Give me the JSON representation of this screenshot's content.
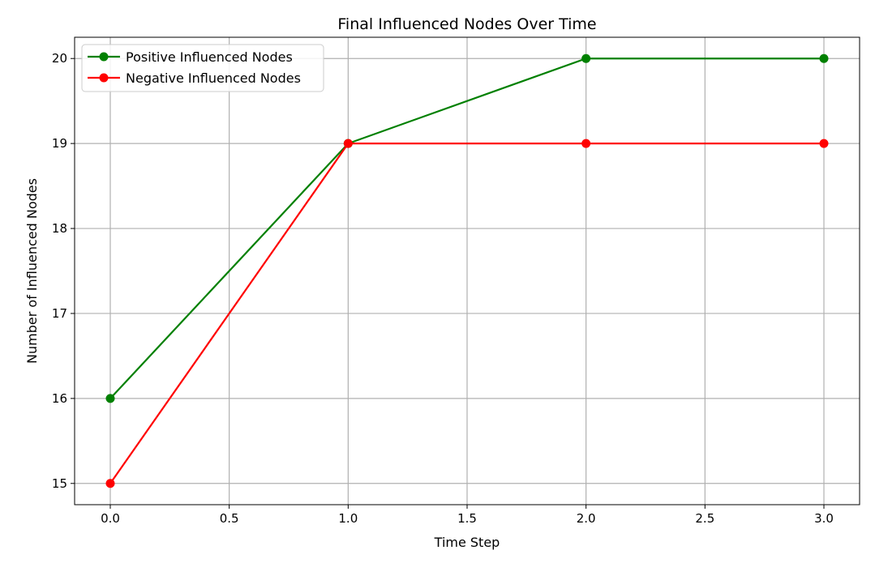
{
  "chart_data": {
    "type": "line",
    "title": "Final Influenced Nodes Over Time",
    "xlabel": "Time Step",
    "ylabel": "Number of Influenced Nodes",
    "x": [
      0,
      1,
      2,
      3
    ],
    "series": [
      {
        "name": "Positive Influenced Nodes",
        "values": [
          16,
          19,
          20,
          20
        ],
        "color": "#008000",
        "marker": "circle"
      },
      {
        "name": "Negative Influenced Nodes",
        "values": [
          15,
          19,
          19,
          19
        ],
        "color": "#ff0000",
        "marker": "circle"
      }
    ],
    "xlim": [
      -0.15,
      3.15
    ],
    "ylim": [
      14.75,
      20.25
    ],
    "xticks": [
      0.0,
      0.5,
      1.0,
      1.5,
      2.0,
      2.5,
      3.0
    ],
    "xtick_labels": [
      "0.0",
      "0.5",
      "1.0",
      "1.5",
      "2.0",
      "2.5",
      "3.0"
    ],
    "yticks": [
      15,
      16,
      17,
      18,
      19,
      20
    ],
    "ytick_labels": [
      "15",
      "16",
      "17",
      "18",
      "19",
      "20"
    ],
    "grid": true,
    "legend_position": "upper-left",
    "grid_color": "#b0b0b0"
  }
}
